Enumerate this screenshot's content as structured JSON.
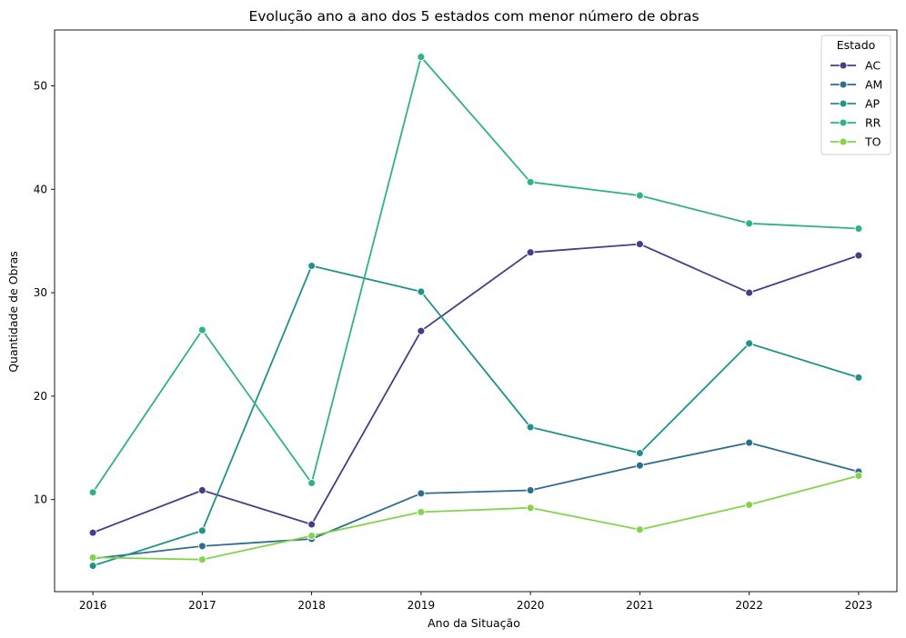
{
  "chart_data": {
    "type": "line",
    "title": "Evolução ano a ano dos 5 estados com menor número de obras",
    "xlabel": "Ano da Situação",
    "ylabel": "Quantidade de Obras",
    "x": [
      2016,
      2017,
      2018,
      2019,
      2020,
      2021,
      2022,
      2023
    ],
    "x_ticks": [
      "2016",
      "2017",
      "2018",
      "2019",
      "2020",
      "2021",
      "2022",
      "2023"
    ],
    "y_ticks": [
      "10",
      "20",
      "30",
      "40",
      "50"
    ],
    "y_tick_values": [
      10,
      20,
      30,
      40,
      50
    ],
    "xlim": [
      2015.65,
      2023.35
    ],
    "ylim": [
      1.1,
      55.4
    ],
    "grid": false,
    "legend": {
      "title": "Estado",
      "placement": "top-right"
    },
    "series": [
      {
        "name": "AC",
        "color": "#433e85",
        "values": [
          6.8,
          10.9,
          7.6,
          26.3,
          33.9,
          34.7,
          30.0,
          33.6
        ]
      },
      {
        "name": "AM",
        "color": "#2d6e8e",
        "values": [
          4.3,
          5.5,
          6.2,
          10.6,
          10.9,
          13.3,
          15.5,
          12.7
        ]
      },
      {
        "name": "AP",
        "color": "#21918c",
        "values": [
          3.6,
          7.0,
          32.6,
          30.1,
          17.0,
          14.5,
          25.1,
          21.8
        ]
      },
      {
        "name": "RR",
        "color": "#2fb47c",
        "values": [
          10.7,
          26.4,
          11.6,
          52.8,
          40.7,
          39.4,
          36.7,
          36.2
        ]
      },
      {
        "name": "TO",
        "color": "#84d44b",
        "values": [
          4.4,
          4.2,
          6.5,
          8.8,
          9.2,
          7.1,
          9.5,
          12.3
        ]
      }
    ]
  }
}
